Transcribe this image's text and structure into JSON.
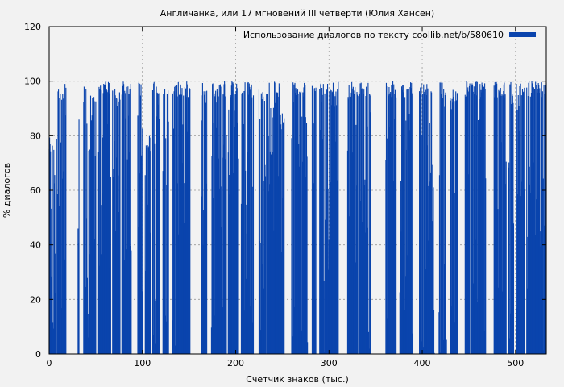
{
  "chart_data": {
    "type": "bar",
    "title": "Англичанка, или 17 мгновений III четверти (Юлия Хансен)",
    "xlabel": "Счетчик знаков (тыс.)",
    "ylabel": "% диалогов",
    "xlim": [
      0,
      533
    ],
    "ylim": [
      0,
      120
    ],
    "x_ticks": [
      "0",
      "100",
      "200",
      "300",
      "400",
      "500"
    ],
    "y_ticks": [
      "0",
      "20",
      "40",
      "60",
      "80",
      "100",
      "120"
    ],
    "grid": true,
    "legend_position": "top-right",
    "series": [
      {
        "name": "Использование диалогов по тексту coollib.net/b/580610",
        "color": "#0a44ad",
        "segments": [
          {
            "start": 0,
            "end": 8,
            "peak": 80
          },
          {
            "start": 9,
            "end": 18,
            "peak": 99
          },
          {
            "start": 31,
            "end": 32,
            "peak": 86
          },
          {
            "start": 37,
            "end": 50,
            "peak": 98
          },
          {
            "start": 53,
            "end": 66,
            "peak": 100
          },
          {
            "start": 68,
            "end": 76,
            "peak": 98
          },
          {
            "start": 78,
            "end": 88,
            "peak": 100
          },
          {
            "start": 95,
            "end": 100,
            "peak": 100
          },
          {
            "start": 103,
            "end": 109,
            "peak": 80
          },
          {
            "start": 111,
            "end": 118,
            "peak": 100
          },
          {
            "start": 122,
            "end": 128,
            "peak": 98
          },
          {
            "start": 132,
            "end": 151,
            "peak": 100
          },
          {
            "start": 163,
            "end": 169,
            "peak": 100
          },
          {
            "start": 174,
            "end": 190,
            "peak": 100
          },
          {
            "start": 192,
            "end": 203,
            "peak": 100
          },
          {
            "start": 206,
            "end": 219,
            "peak": 100
          },
          {
            "start": 225,
            "end": 232,
            "peak": 98
          },
          {
            "start": 233,
            "end": 247,
            "peak": 100
          },
          {
            "start": 248,
            "end": 252,
            "peak": 90
          },
          {
            "start": 260,
            "end": 277,
            "peak": 100
          },
          {
            "start": 282,
            "end": 286,
            "peak": 100
          },
          {
            "start": 290,
            "end": 310,
            "peak": 100
          },
          {
            "start": 320,
            "end": 331,
            "peak": 100
          },
          {
            "start": 333,
            "end": 345,
            "peak": 100
          },
          {
            "start": 361,
            "end": 372,
            "peak": 100
          },
          {
            "start": 376,
            "end": 390,
            "peak": 100
          },
          {
            "start": 397,
            "end": 413,
            "peak": 100
          },
          {
            "start": 418,
            "end": 426,
            "peak": 100
          },
          {
            "start": 430,
            "end": 438,
            "peak": 98
          },
          {
            "start": 446,
            "end": 451,
            "peak": 100
          },
          {
            "start": 453,
            "end": 468,
            "peak": 100
          },
          {
            "start": 477,
            "end": 490,
            "peak": 100
          },
          {
            "start": 492,
            "end": 498,
            "peak": 100
          },
          {
            "start": 501,
            "end": 510,
            "peak": 100
          },
          {
            "start": 512,
            "end": 533,
            "peak": 100
          }
        ]
      }
    ]
  }
}
